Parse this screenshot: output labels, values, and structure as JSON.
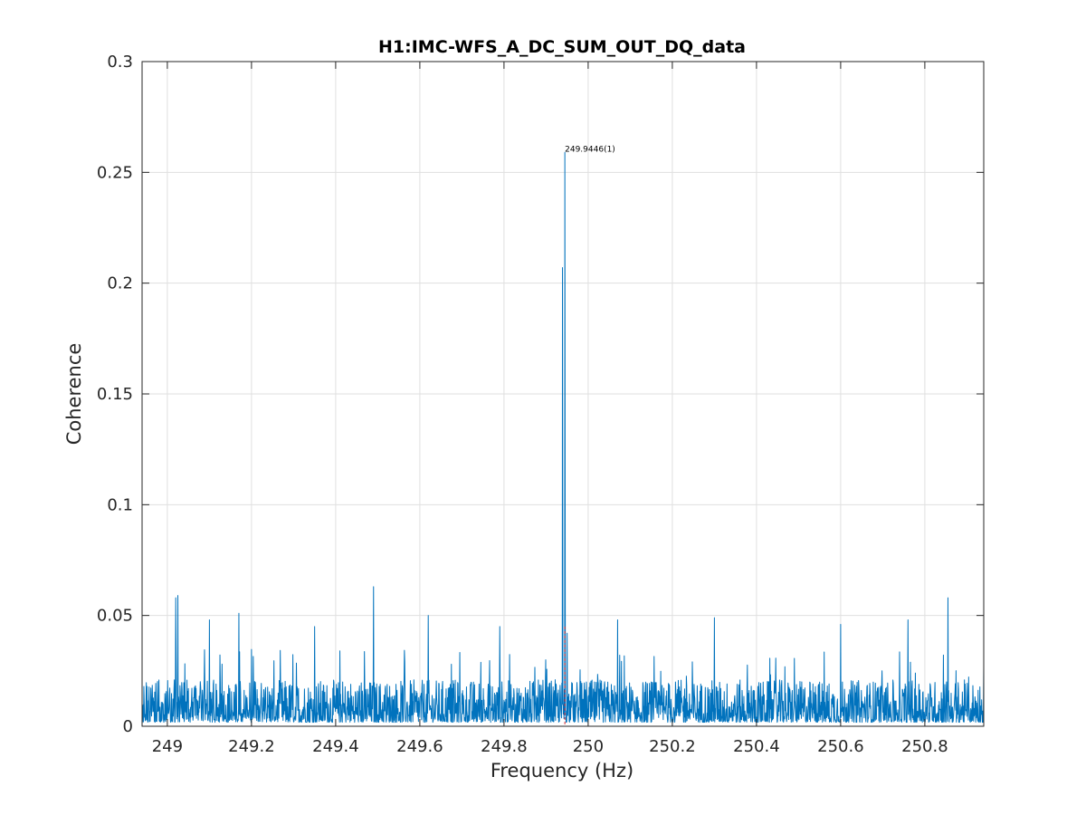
{
  "chart_data": {
    "type": "line",
    "title": "H1:IMC-WFS_A_DC_SUM_OUT_DQ_data",
    "xlabel": "Frequency (Hz)",
    "ylabel": "Coherence",
    "xlim": [
      248.94,
      250.94
    ],
    "ylim": [
      0,
      0.3
    ],
    "xticks": [
      249,
      249.2,
      249.4,
      249.6,
      249.8,
      250,
      250.2,
      250.4,
      250.6,
      250.8
    ],
    "xtick_labels": [
      "249",
      "249.2",
      "249.4",
      "249.6",
      "249.8",
      "250",
      "250.2",
      "250.4",
      "250.6",
      "250.8"
    ],
    "yticks": [
      0,
      0.05,
      0.1,
      0.15,
      0.2,
      0.25,
      0.3
    ],
    "ytick_labels": [
      "0",
      "0.05",
      "0.1",
      "0.15",
      "0.2",
      "0.25",
      "0.3"
    ],
    "grid": true,
    "series": [
      {
        "color": "#0072bd",
        "noise_floor": 0.012,
        "noise_ceiling": 0.035,
        "x": [
          248.94,
          249.02,
          249.025,
          249.1,
          249.17,
          249.35,
          249.49,
          249.62,
          249.79,
          249.939,
          249.9446,
          249.95,
          250.07,
          250.3,
          250.6,
          250.76,
          250.855,
          250.94
        ],
        "y": [
          0.005,
          0.058,
          0.059,
          0.048,
          0.051,
          0.045,
          0.063,
          0.05,
          0.045,
          0.207,
          0.259,
          0.042,
          0.048,
          0.049,
          0.046,
          0.048,
          0.058,
          0.027
        ]
      }
    ],
    "marker_line": {
      "x": 249.9446,
      "color": "#d62728"
    },
    "annotations": [
      {
        "x": 249.9446,
        "y": 0.259,
        "text": "249.9446(1)"
      }
    ]
  }
}
